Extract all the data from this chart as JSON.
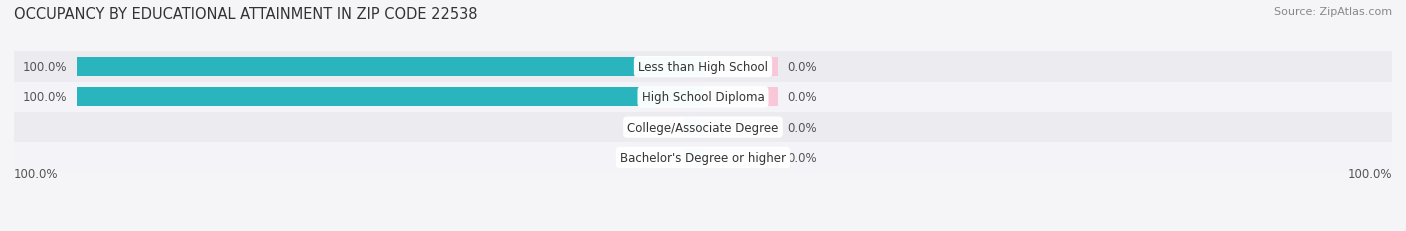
{
  "title": "OCCUPANCY BY EDUCATIONAL ATTAINMENT IN ZIP CODE 22538",
  "source": "Source: ZipAtlas.com",
  "categories": [
    "Less than High School",
    "High School Diploma",
    "College/Associate Degree",
    "Bachelor's Degree or higher"
  ],
  "owner_values": [
    100.0,
    100.0,
    0.0,
    0.0
  ],
  "renter_values": [
    0.0,
    0.0,
    0.0,
    0.0
  ],
  "owner_color": "#2ab5be",
  "renter_color": "#f4a4bc",
  "owner_color_light": "#7fd4da",
  "renter_color_light": "#f9c8d8",
  "row_bg_even": "#ebebf0",
  "row_bg_odd": "#f4f4f8",
  "title_fontsize": 10.5,
  "label_fontsize": 8.5,
  "tick_fontsize": 8.5,
  "source_fontsize": 8,
  "background_color": "#f5f5f8",
  "left_axis_label": "100.0%",
  "right_axis_label": "100.0%"
}
